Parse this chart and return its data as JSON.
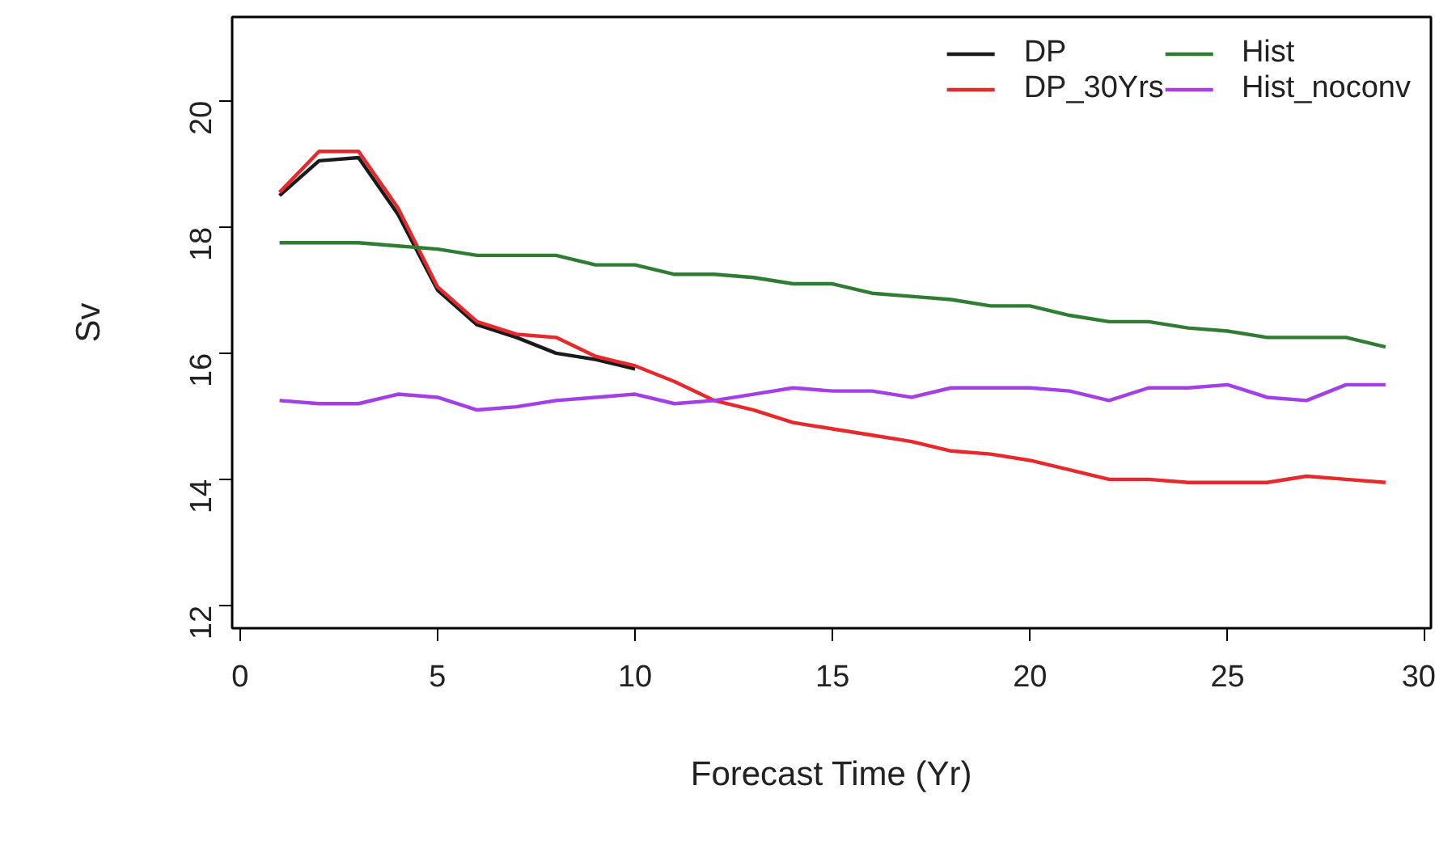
{
  "chart_data": {
    "type": "line",
    "xlabel": "Forecast Time (Yr)",
    "ylabel": "Sv",
    "xlim": [
      -0.2,
      30.15
    ],
    "ylim": [
      11.64,
      21.33
    ],
    "xticks": [
      0,
      5,
      10,
      15,
      20,
      25,
      30
    ],
    "yticks": [
      12,
      14,
      16,
      18,
      20
    ],
    "grid": false,
    "legend": "top right",
    "marker": "none",
    "line_style": "solid",
    "series": [
      {
        "name": "DP",
        "color": "#1a1a1a",
        "x": [
          1,
          2,
          3,
          4,
          5,
          6,
          7,
          8,
          9,
          10
        ],
        "values": [
          18.5,
          19.05,
          19.1,
          18.2,
          17.0,
          16.45,
          16.25,
          16.0,
          15.9,
          15.75
        ]
      },
      {
        "name": "DP_30Yrs",
        "color": "#e8282a",
        "x": [
          1,
          2,
          3,
          4,
          5,
          6,
          7,
          8,
          9,
          10,
          11,
          12,
          13,
          14,
          15,
          16,
          17,
          18,
          19,
          20,
          21,
          22,
          23,
          24,
          25,
          26,
          27,
          28,
          29
        ],
        "values": [
          18.55,
          19.2,
          19.2,
          18.3,
          17.05,
          16.5,
          16.3,
          16.25,
          15.95,
          15.8,
          15.55,
          15.25,
          15.1,
          14.9,
          14.8,
          14.7,
          14.6,
          14.45,
          14.4,
          14.3,
          14.15,
          14.0,
          14.0,
          13.95,
          13.95,
          13.95,
          14.05,
          14.0,
          13.95
        ]
      },
      {
        "name": "Hist",
        "color": "#2e7d32",
        "x": [
          1,
          2,
          3,
          4,
          5,
          6,
          7,
          8,
          9,
          10,
          11,
          12,
          13,
          14,
          15,
          16,
          17,
          18,
          19,
          20,
          21,
          22,
          23,
          24,
          25,
          26,
          27,
          28,
          29
        ],
        "values": [
          17.75,
          17.75,
          17.75,
          17.7,
          17.65,
          17.55,
          17.55,
          17.55,
          17.4,
          17.4,
          17.25,
          17.25,
          17.2,
          17.1,
          17.1,
          16.95,
          16.9,
          16.85,
          16.75,
          16.75,
          16.6,
          16.5,
          16.5,
          16.4,
          16.35,
          16.25,
          16.25,
          16.25,
          16.1
        ]
      },
      {
        "name": "Hist_noconv",
        "color": "#a43ee6",
        "x": [
          1,
          2,
          3,
          4,
          5,
          6,
          7,
          8,
          9,
          10,
          11,
          12,
          13,
          14,
          15,
          16,
          17,
          18,
          19,
          20,
          21,
          22,
          23,
          24,
          25,
          26,
          27,
          28,
          29
        ],
        "values": [
          15.25,
          15.2,
          15.2,
          15.35,
          15.3,
          15.1,
          15.15,
          15.25,
          15.3,
          15.35,
          15.2,
          15.25,
          15.35,
          15.45,
          15.4,
          15.4,
          15.3,
          15.45,
          15.45,
          15.45,
          15.4,
          15.25,
          15.45,
          15.45,
          15.5,
          15.3,
          15.25,
          15.5,
          15.5
        ]
      }
    ]
  }
}
